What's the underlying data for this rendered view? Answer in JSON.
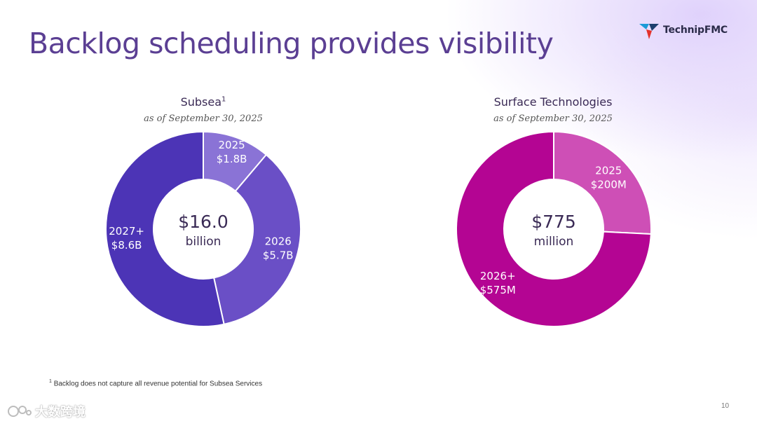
{
  "title": "Backlog scheduling provides visibility",
  "logo": {
    "text": "TechnipFMC"
  },
  "colors": {
    "title": "#5b3f93",
    "subsea_2025": "#8a73d6",
    "subsea_2026": "#6a4fc6",
    "subsea_2027": "#4c34b6",
    "surface_2025": "#ce4fb6",
    "surface_2026": "#b40593"
  },
  "chart_data": [
    {
      "type": "pie",
      "title": "Subsea",
      "title_sup": "1",
      "subtitle": "as of September 30, 2025",
      "center_value": "$16.0",
      "center_unit": "billion",
      "unit": "billion USD",
      "slices": [
        {
          "year": "2025",
          "label": "$1.8B",
          "value": 1.8
        },
        {
          "year": "2026",
          "label": "$5.7B",
          "value": 5.7
        },
        {
          "year": "2027+",
          "label": "$8.6B",
          "value": 8.6
        }
      ]
    },
    {
      "type": "pie",
      "title": "Surface Technologies",
      "subtitle": "as of September 30, 2025",
      "center_value": "$775",
      "center_unit": "million",
      "unit": "million USD",
      "slices": [
        {
          "year": "2025",
          "label": "$200M",
          "value": 200
        },
        {
          "year": "2026+",
          "label": "$575M",
          "value": 575
        }
      ]
    }
  ],
  "footnote": {
    "sup": "1",
    "text": "Backlog does not capture all revenue potential for Subsea Services"
  },
  "page_number": "10",
  "watermark": "大数跨境"
}
